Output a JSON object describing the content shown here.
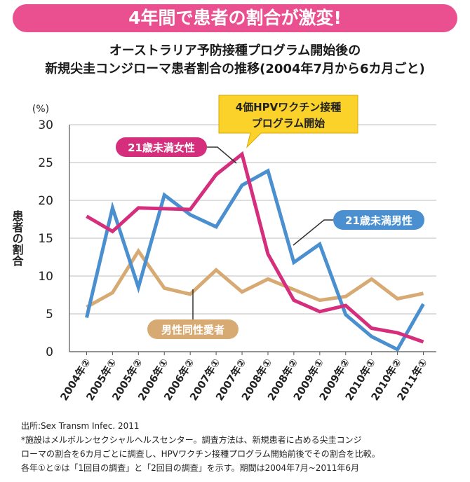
{
  "banner": "4年間で患者の割合が激変!",
  "subtitle_line1": "オーストラリア予防接種プログラム開始後の",
  "subtitle_line2": "新規尖圭コンジローマ患者割合の推移(2004年7月から6カ月ごと)",
  "footer": {
    "source": "出所:Sex Transm Infec. 2011",
    "note1": "*施設はメルボルンセクシャルヘルスセンター。調査方法は、新規患者に占める尖圭コンジ",
    "note2": "ローマの割合を6カ月ごとに調査し、HPVワクチン接種プログラム開始前後でその割合を比較。",
    "note3": "各年①と②は「1回目の調査」と「2回目の調査」を示す。期間は2004年7月~2011年6月"
  },
  "chart_data": {
    "type": "line",
    "unit": "(%)",
    "ylabel": "患者の割合",
    "ylim": [
      0,
      30
    ],
    "yticks": [
      0,
      5,
      10,
      15,
      20,
      25,
      30
    ],
    "grid": true,
    "categories": [
      "2004年②",
      "2005年①",
      "2005年②",
      "2006年①",
      "2006年②",
      "2007年①",
      "2007年②",
      "2008年①",
      "2008年②",
      "2009年①",
      "2009年②",
      "2010年①",
      "2010年②",
      "2011年①"
    ],
    "series": [
      {
        "name": "21歳未満男性",
        "color": "#4a8fcf",
        "values": [
          4.5,
          19,
          8.5,
          20.7,
          18.1,
          16.5,
          22,
          23.9,
          11.8,
          14.2,
          4.9,
          2,
          0.3,
          6.3
        ]
      },
      {
        "name": "21歳未満女性",
        "color": "#d42e7c",
        "values": [
          17.9,
          15.9,
          19,
          18.9,
          18.8,
          23.4,
          26.1,
          12.9,
          6.8,
          5.3,
          6.1,
          3.1,
          2.5,
          1.3
        ]
      },
      {
        "name": "男性同性愛者",
        "color": "#d8aa73",
        "values": [
          5.9,
          7.8,
          13.3,
          8.4,
          7.6,
          10.8,
          7.9,
          9.6,
          8.2,
          6.8,
          7.3,
          9.6,
          7,
          7.7
        ]
      }
    ],
    "annotation": {
      "line1": "4価HPVワクチン接種",
      "line2": "プログラム開始",
      "color": "#fbd22a"
    }
  }
}
